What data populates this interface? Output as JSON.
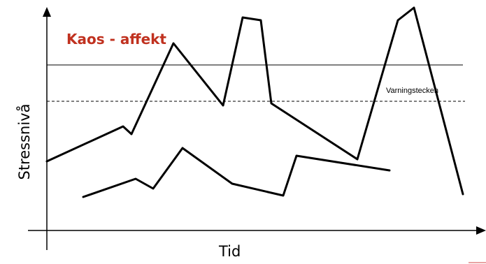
{
  "title": "Kaos - affekt",
  "threshold_label": "Varningstecken",
  "x_axis_label": "Tid",
  "y_axis_label": "Stressnivå",
  "colors": {
    "title": "#c0311f",
    "lines": "#000000",
    "accent_mark": "#e8a3a3"
  }
}
